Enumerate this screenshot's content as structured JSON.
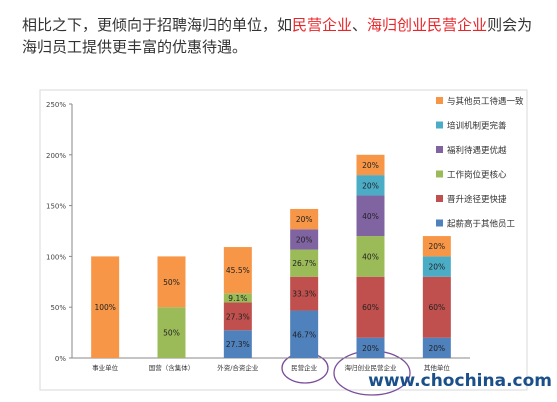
{
  "chart_data": {
    "type": "stacked_bar",
    "title": [
      "相比之下，更倾向于招聘海归的单位，如",
      "民营企业",
      "、",
      "海归创业民营企业",
      "则会为海归员工提供更丰富的优惠待遇。"
    ],
    "title_colors": [
      "#333333",
      "#e8262a",
      "#333333",
      "#e8262a",
      "#333333"
    ],
    "categories": [
      "事业单位",
      "国营（含集体）",
      "外资/合资企业",
      "民营企业",
      "海归创业民营企业",
      "其他单位"
    ],
    "series": [
      {
        "name": "起薪高于其他员工",
        "color": "#4f81bd",
        "values": [
          null,
          null,
          27.3,
          46.7,
          20,
          20
        ],
        "value_labels": [
          null,
          null,
          "27.3%",
          "46.7%",
          "20%",
          "20%"
        ]
      },
      {
        "name": "晋升途径更快捷",
        "color": "#c0504d",
        "values": [
          null,
          null,
          27.3,
          33.3,
          60,
          60
        ],
        "value_labels": [
          null,
          null,
          "27.3%",
          "33.3%",
          "60%",
          "60%"
        ]
      },
      {
        "name": "工作岗位更核心",
        "color": "#9bbb59",
        "values": [
          null,
          50,
          9.1,
          26.7,
          40,
          null
        ],
        "value_labels": [
          null,
          "50%",
          "9.1%",
          "26.7%",
          "40%",
          null
        ]
      },
      {
        "name": "福利待遇更优越",
        "color": "#8064a2",
        "values": [
          null,
          null,
          null,
          20,
          40,
          null
        ],
        "value_labels": [
          null,
          null,
          null,
          "20%",
          "40%",
          null
        ]
      },
      {
        "name": "培训机制更完善",
        "color": "#4bacc6",
        "values": [
          null,
          null,
          null,
          null,
          20,
          20
        ],
        "value_labels": [
          null,
          null,
          null,
          null,
          "20%",
          "20%"
        ]
      },
      {
        "name": "与其他员工待遇一致",
        "color": "#f79646",
        "values": [
          100,
          50,
          45.5,
          20,
          20,
          20
        ],
        "value_labels": [
          "100%",
          "50%",
          "45.5%",
          "20%",
          "20%",
          "20%"
        ]
      }
    ],
    "ylim": [
      0,
      250
    ],
    "yticks": [
      {
        "value": 0,
        "label": "0%"
      },
      {
        "value": 50,
        "label": "50%"
      },
      {
        "value": 100,
        "label": "100%"
      },
      {
        "value": 150,
        "label": "150%"
      },
      {
        "value": 200,
        "label": "200%"
      },
      {
        "value": 250,
        "label": "250%"
      }
    ],
    "legend": "right",
    "watermark": "www.chochina.com"
  }
}
